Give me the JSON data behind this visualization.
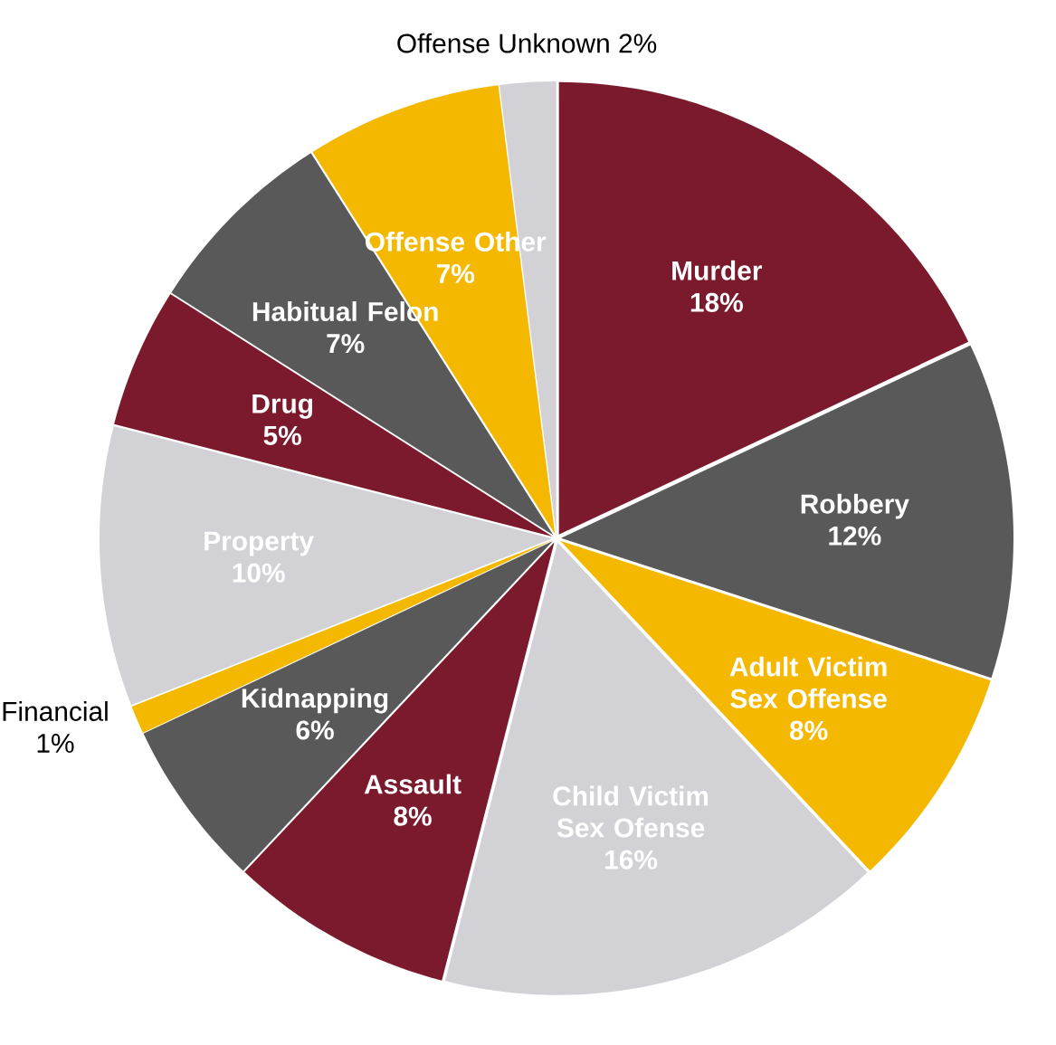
{
  "chart_data": {
    "type": "pie",
    "categories": [
      "Murder",
      "Robbery",
      "Adult Victim Sex Offense",
      "Child Victim Sex Ofense",
      "Assault",
      "Kidnapping",
      "Financial",
      "Property",
      "Drug",
      "Habitual Felon",
      "Offense Other",
      "Offense Unknown"
    ],
    "values": [
      18,
      12,
      8,
      16,
      8,
      6,
      1,
      10,
      5,
      7,
      7,
      2
    ],
    "value_labels": [
      "18%",
      "12%",
      "8%",
      "16%",
      "8%",
      "6%",
      "1%",
      "10%",
      "5%",
      "7%",
      "7%",
      "2%"
    ],
    "colors": [
      "#7b1a2c",
      "#595959",
      "#f5b800",
      "#d2d2d6",
      "#7b1a2c",
      "#595959",
      "#f5b800",
      "#d2d2d6",
      "#7b1a2c",
      "#595959",
      "#f5b800",
      "#d2d2d6"
    ],
    "legend": false
  }
}
